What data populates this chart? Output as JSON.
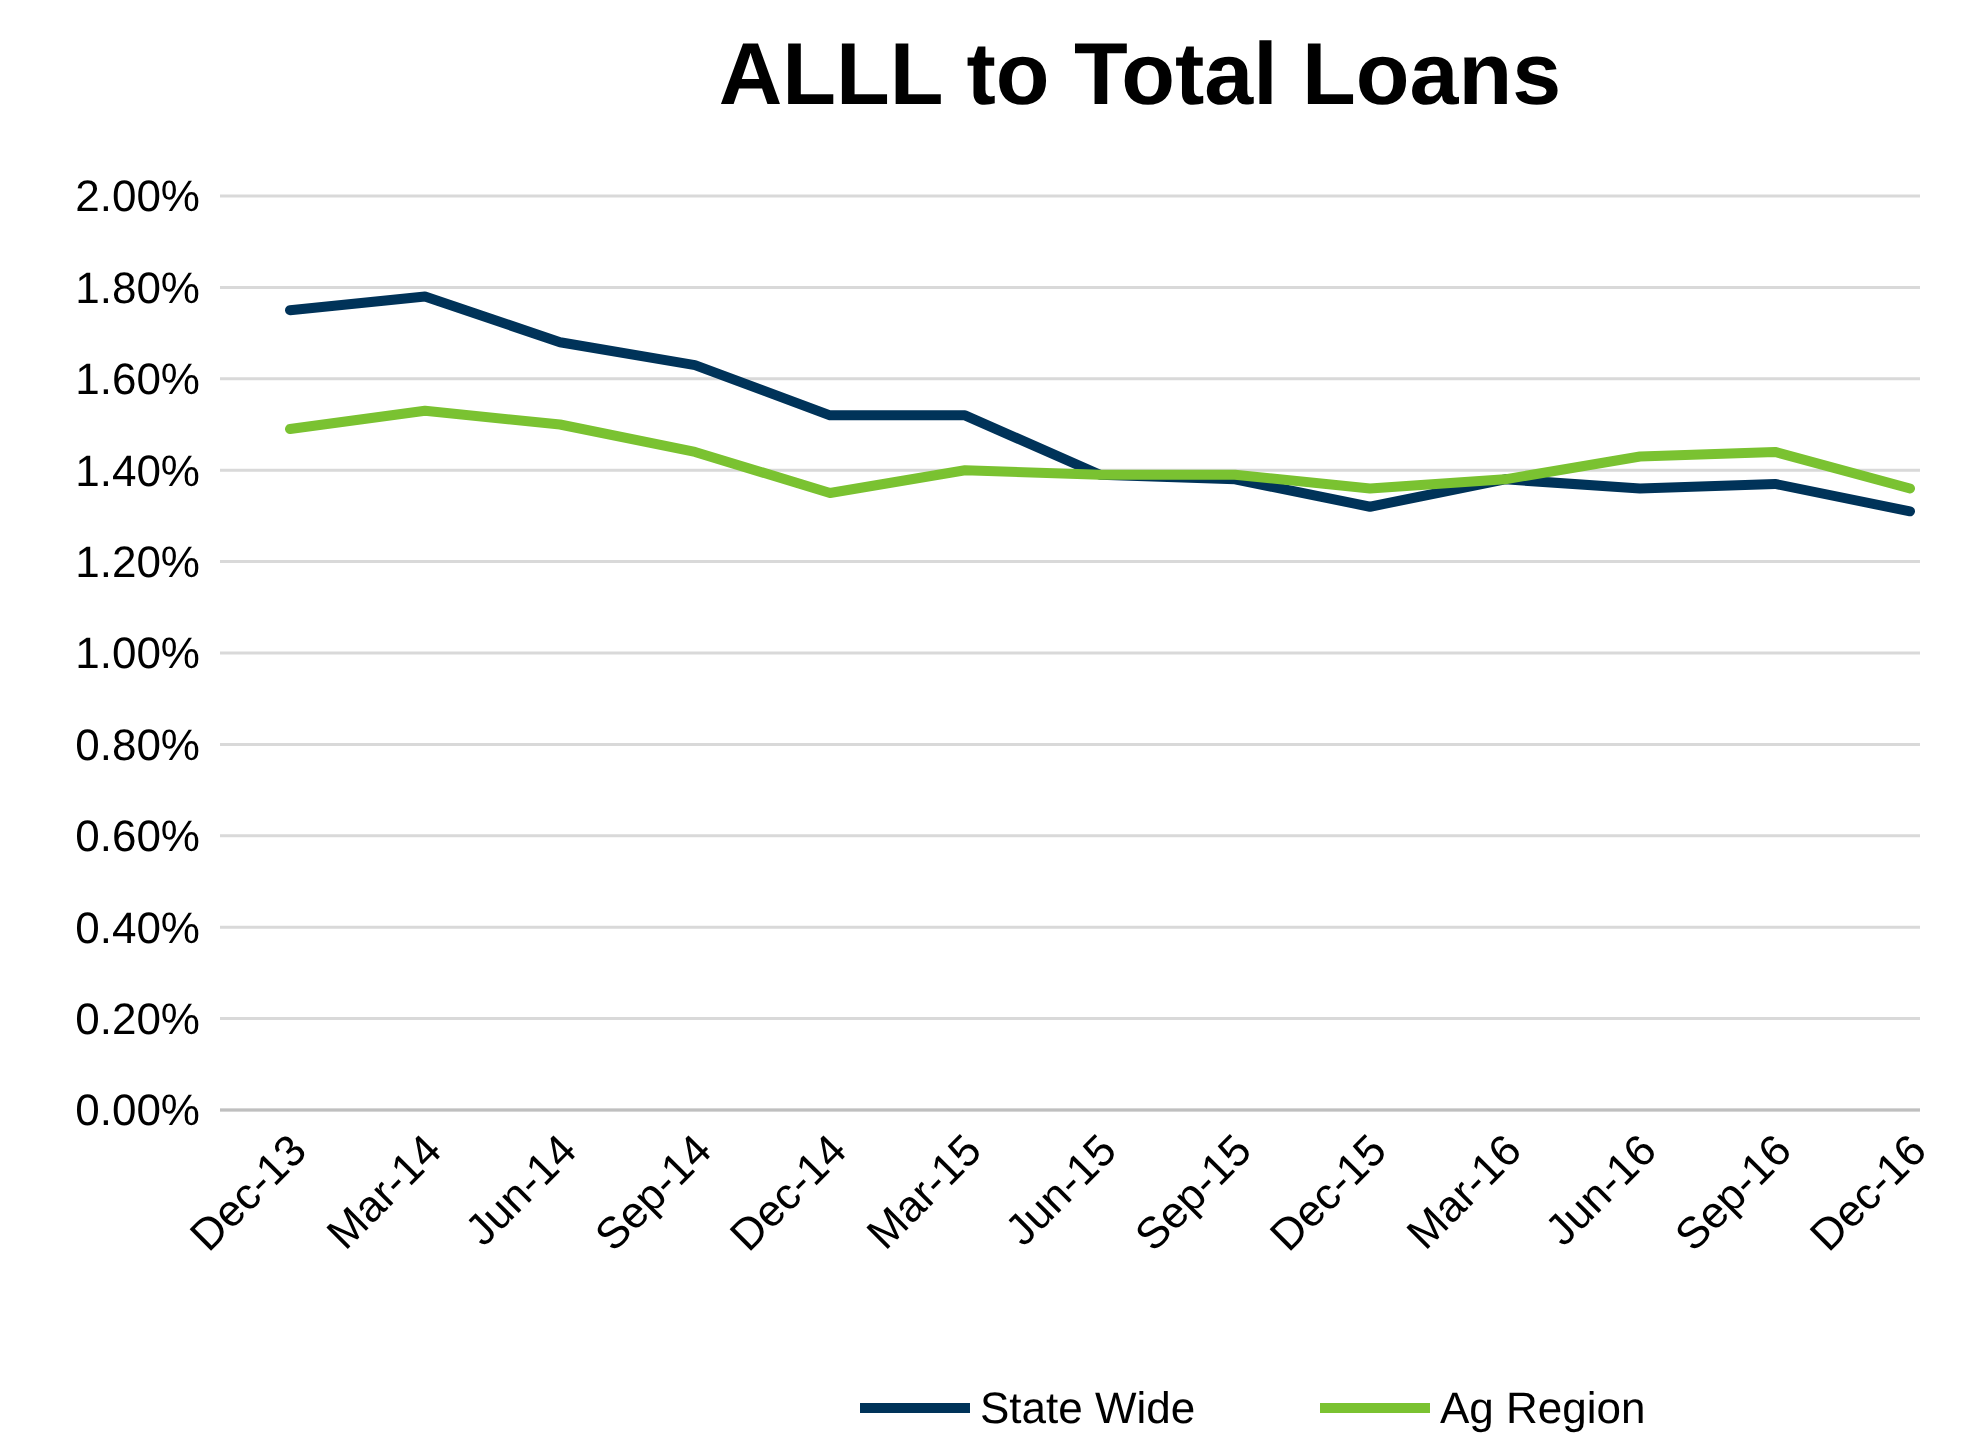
{
  "chart_data": {
    "type": "line",
    "title": "ALLL to Total Loans",
    "categories": [
      "Dec-13",
      "Mar-14",
      "Jun-14",
      "Sep-14",
      "Dec-14",
      "Mar-15",
      "Jun-15",
      "Sep-15",
      "Dec-15",
      "Mar-16",
      "Jun-16",
      "Sep-16",
      "Dec-16"
    ],
    "series": [
      {
        "name": "State Wide",
        "color": "#003359",
        "values": [
          1.75,
          1.78,
          1.68,
          1.63,
          1.52,
          1.52,
          1.39,
          1.38,
          1.32,
          1.38,
          1.36,
          1.37,
          1.31
        ]
      },
      {
        "name": "Ag Region",
        "color": "#7ac231",
        "values": [
          1.49,
          1.53,
          1.5,
          1.44,
          1.35,
          1.4,
          1.39,
          1.39,
          1.36,
          1.38,
          1.43,
          1.44,
          1.36
        ]
      }
    ],
    "ylim": [
      0,
      2
    ],
    "yticks": [
      {
        "value": 0,
        "label": "0.00%"
      },
      {
        "value": 0.2,
        "label": "0.20%"
      },
      {
        "value": 0.4,
        "label": "0.40%"
      },
      {
        "value": 0.6,
        "label": "0.60%"
      },
      {
        "value": 0.8,
        "label": "0.80%"
      },
      {
        "value": 1,
        "label": "1.00%"
      },
      {
        "value": 1.2,
        "label": "1.20%"
      },
      {
        "value": 1.4,
        "label": "1.40%"
      },
      {
        "value": 1.6,
        "label": "1.60%"
      },
      {
        "value": 1.8,
        "label": "1.80%"
      },
      {
        "value": 2,
        "label": "2.00%"
      }
    ],
    "grid": "y",
    "legend": "bottom",
    "marker": "none",
    "line_style": "solid"
  }
}
